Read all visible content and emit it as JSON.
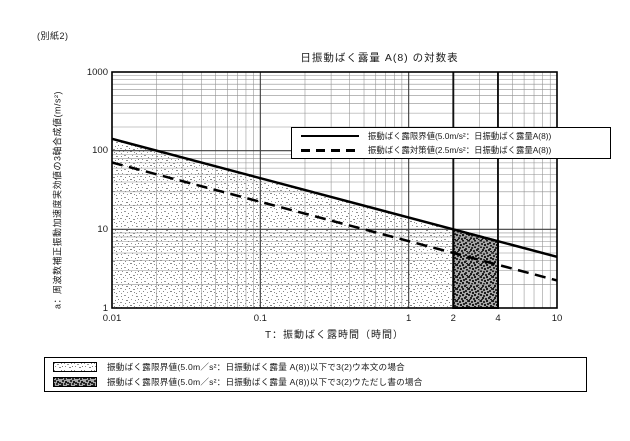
{
  "page": {
    "note": "(別紙2)"
  },
  "colors": {
    "line": "#000000",
    "grid_minor": "#8f8f8f",
    "grid_major": "#3d3d3d",
    "grid_emphasis": "#111111",
    "background": "#ffffff"
  },
  "chart_data": {
    "type": "line",
    "title": "日振動ばく露量 A(8) の対数表",
    "xlabel": "T：振動ばく露時間（時間）",
    "ylabel": "a：周波数補正振動加速度実効値の3軸合成値(m/s²)",
    "x_scale": "log",
    "y_scale": "log",
    "xlim": [
      0.01,
      10
    ],
    "ylim": [
      1,
      1000
    ],
    "grid": "log-major-minor",
    "x_ticks": [
      {
        "value": 0.01,
        "label": "0.01"
      },
      {
        "value": 0.1,
        "label": "0.1"
      },
      {
        "value": 1,
        "label": "1"
      },
      {
        "value": 2,
        "label": "2"
      },
      {
        "value": 4,
        "label": "4"
      },
      {
        "value": 10,
        "label": "10"
      }
    ],
    "y_ticks": [
      {
        "value": 1,
        "label": "1"
      },
      {
        "value": 10,
        "label": "10"
      },
      {
        "value": 100,
        "label": "100"
      },
      {
        "value": 1000,
        "label": "1000"
      }
    ],
    "emphasized_x_gridlines": [
      2,
      4
    ],
    "series": [
      {
        "name": "振動ばく露限界値(5.0m/s²：日振動ばく露量A(8))",
        "style": "solid",
        "a8_value": "5.0 m/s²",
        "points": [
          [
            0.01,
            141.42
          ],
          [
            10,
            4.47
          ]
        ]
      },
      {
        "name": "振動ばく露対策値(2.5m/s²：日振動ばく露量A(8))",
        "style": "dashed",
        "a8_value": "2.5 m/s²",
        "points": [
          [
            0.01,
            70.71
          ],
          [
            10,
            2.24
          ]
        ]
      }
    ],
    "regions": [
      {
        "name": "limit-main-text-region",
        "pattern": "light",
        "points": [
          [
            0.01,
            1
          ],
          [
            0.01,
            141.42
          ],
          [
            2,
            10
          ],
          [
            2,
            1
          ]
        ],
        "border": false
      },
      {
        "name": "limit-proviso-region",
        "pattern": "dark",
        "points": [
          [
            2,
            1
          ],
          [
            2,
            10
          ],
          [
            4,
            7.07
          ],
          [
            4,
            1
          ]
        ],
        "border": true
      }
    ],
    "legend": {
      "position": "upper-right-inside",
      "entries": [
        {
          "style": "solid",
          "label": "振動ばく露限界値(5.0m/s²：日振動ばく露量A(8))"
        },
        {
          "style": "dashed",
          "label": "振動ばく露対策値(2.5m/s²：日振動ばく露量A(8))"
        }
      ]
    },
    "bottom_legend": {
      "entries": [
        {
          "pattern": "light",
          "label": "振動ばく露限界値(5.0m／s²：日振動ばく露量 A(8))以下で3(2)ウ本文の場合"
        },
        {
          "pattern": "dark",
          "label": "振動ばく露限界値(5.0m／s²：日振動ばく露量 A(8))以下で3(2)ウただし書の場合"
        }
      ]
    }
  }
}
